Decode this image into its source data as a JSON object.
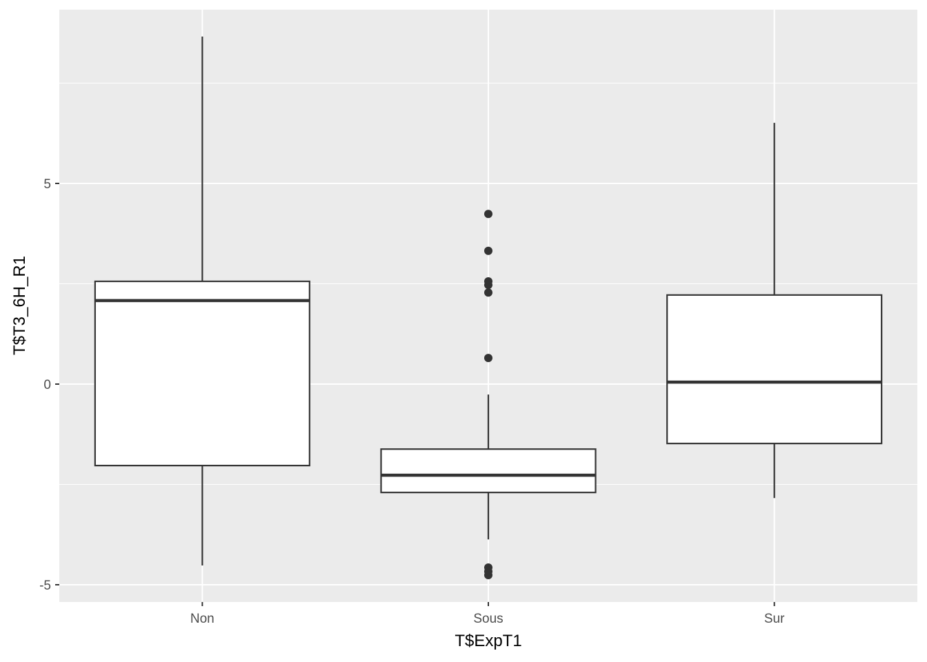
{
  "chart_data": {
    "type": "boxplot",
    "xlabel": "T$ExpT1",
    "ylabel": "T$T3_6H_R1",
    "categories": [
      "Non",
      "Sous",
      "Sur"
    ],
    "ylim": [
      -5.43,
      9.33
    ],
    "yticks": [
      -5,
      0,
      5
    ],
    "ytick_labels": [
      "-5",
      "0",
      "5"
    ],
    "grid": true,
    "panel_color": "#EBEBEB",
    "box_stroke": "#333333",
    "boxes": [
      {
        "category": "Non",
        "whisker_low": -4.52,
        "q1": -2.03,
        "median": 2.08,
        "q3": 2.56,
        "whisker_high": 8.66,
        "outliers": []
      },
      {
        "category": "Sous",
        "whisker_low": -3.87,
        "q1": -2.7,
        "median": -2.27,
        "q3": -1.62,
        "whisker_high": -0.26,
        "outliers": [
          4.24,
          3.32,
          2.56,
          2.47,
          2.28,
          0.65,
          -4.57,
          -4.67,
          -4.76
        ]
      },
      {
        "category": "Sur",
        "whisker_low": -2.84,
        "q1": -1.48,
        "median": 0.05,
        "q3": 2.22,
        "whisker_high": 6.51,
        "outliers": []
      }
    ]
  }
}
